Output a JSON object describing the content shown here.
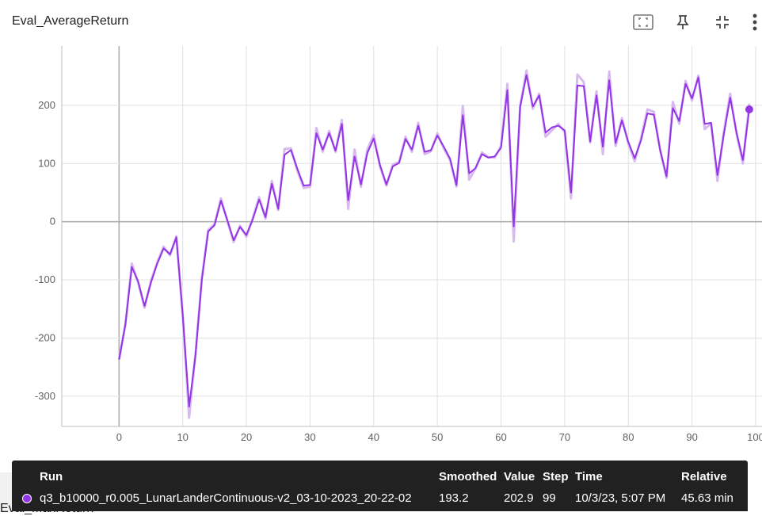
{
  "card": {
    "title": "Eval_AverageReturn",
    "next_title": "Eval_MaxReturn"
  },
  "toolbar": {
    "icons": [
      "fit-domain-icon",
      "pin-icon",
      "collapse-icon",
      "more-vert-icon"
    ]
  },
  "colors": {
    "series": "#9334e6",
    "series_raw": "#d4b3f0",
    "grid": "#e0e0e0",
    "axis": "#b0b0b0",
    "tooltip_bg": "#212121"
  },
  "chart_data": {
    "type": "line",
    "title": "Eval_AverageReturn",
    "xlabel": "",
    "ylabel": "",
    "xlim": [
      -9,
      101
    ],
    "ylim": [
      -352,
      302
    ],
    "x_ticks": [
      0,
      10,
      20,
      30,
      40,
      50,
      60,
      70,
      80,
      90,
      100
    ],
    "y_ticks": [
      -300,
      -200,
      -100,
      0,
      100,
      200
    ],
    "grid": true,
    "legend": "none",
    "series": [
      {
        "name": "q3_b10000_r0.005_LunarLanderContinuous-v2_03-10-2023_20-22-02",
        "x": [
          0,
          1,
          2,
          3,
          4,
          5,
          6,
          7,
          8,
          9,
          10,
          11,
          12,
          13,
          14,
          15,
          16,
          17,
          18,
          19,
          20,
          21,
          22,
          23,
          24,
          25,
          26,
          27,
          28,
          29,
          30,
          31,
          32,
          33,
          34,
          35,
          36,
          37,
          38,
          39,
          40,
          41,
          42,
          43,
          44,
          45,
          46,
          47,
          48,
          49,
          50,
          51,
          52,
          53,
          54,
          55,
          56,
          57,
          58,
          59,
          60,
          61,
          62,
          63,
          64,
          65,
          66,
          67,
          68,
          69,
          70,
          71,
          72,
          73,
          74,
          75,
          76,
          77,
          78,
          79,
          80,
          81,
          82,
          83,
          84,
          85,
          86,
          87,
          88,
          89,
          90,
          91,
          92,
          93,
          94,
          95,
          96,
          97,
          98,
          99
        ],
        "smoothed": [
          -237,
          -176,
          -78,
          -103,
          -145,
          -105,
          -72,
          -46,
          -56,
          -27,
          -160,
          -318,
          -230,
          -100,
          -17,
          -6,
          36,
          3,
          -32,
          -9,
          -23,
          4,
          38,
          8,
          65,
          22,
          115,
          123,
          91,
          62,
          63,
          152,
          124,
          152,
          122,
          168,
          37,
          112,
          64,
          118,
          143,
          97,
          64,
          95,
          101,
          142,
          124,
          165,
          120,
          123,
          148,
          129,
          108,
          63,
          183,
          83,
          92,
          116,
          110,
          112,
          127,
          226,
          -8,
          197,
          252,
          198,
          217,
          153,
          162,
          165,
          157,
          50,
          234,
          233,
          138,
          217,
          129,
          243,
          135,
          174,
          137,
          109,
          140,
          186,
          184,
          123,
          78,
          195,
          173,
          237,
          212,
          248,
          168,
          170,
          80,
          150,
          213,
          153,
          106,
          193
        ],
        "values": [
          -237,
          -176,
          -72,
          -105,
          -148,
          -102,
          -70,
          -43,
          -58,
          -25,
          -162,
          -337,
          -228,
          -97,
          -14,
          -4,
          40,
          1,
          -35,
          -7,
          -26,
          6,
          42,
          5,
          70,
          20,
          125,
          126,
          88,
          58,
          60,
          161,
          120,
          156,
          120,
          175,
          22,
          124,
          60,
          124,
          149,
          94,
          62,
          98,
          103,
          146,
          120,
          170,
          116,
          121,
          152,
          126,
          106,
          60,
          199,
          72,
          92,
          119,
          111,
          110,
          130,
          237,
          -34,
          198,
          260,
          194,
          220,
          146,
          157,
          168,
          154,
          40,
          253,
          240,
          136,
          224,
          116,
          258,
          130,
          178,
          134,
          104,
          144,
          193,
          189,
          123,
          75,
          206,
          168,
          242,
          208,
          251,
          159,
          169,
          70,
          154,
          220,
          151,
          100,
          202.9
        ]
      }
    ]
  },
  "tooltip": {
    "headers": {
      "run": "Run",
      "smoothed": "Smoothed",
      "value": "Value",
      "step": "Step",
      "time": "Time",
      "relative": "Relative"
    },
    "row": {
      "run": "q3_b10000_r0.005_LunarLanderContinuous-v2_03-10-2023_20-22-02",
      "smoothed": "193.2",
      "value": "202.9",
      "step": "99",
      "time": "10/3/23, 5:07 PM",
      "relative": "45.63 min"
    }
  }
}
